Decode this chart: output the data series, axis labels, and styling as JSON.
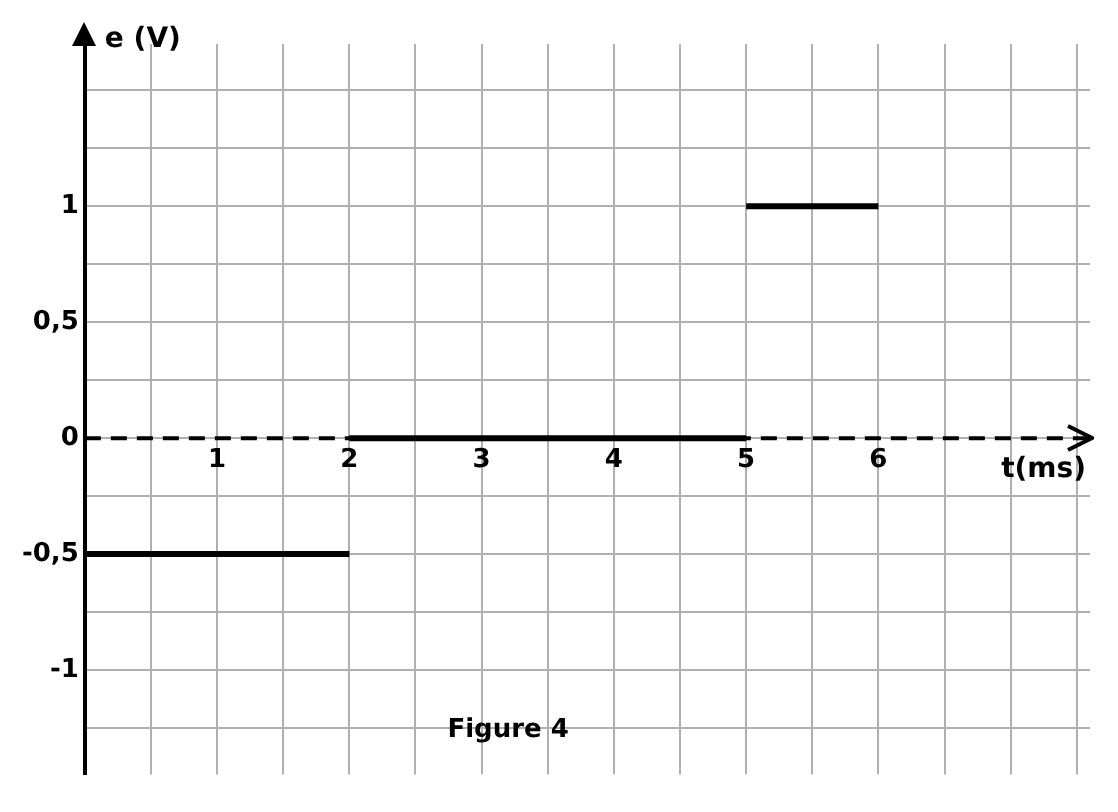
{
  "chart_data": {
    "type": "line",
    "xlabel": "t(ms)",
    "ylabel": "e (V)",
    "annotations": [
      "Figure 4"
    ],
    "xlim": [
      0,
      7.6
    ],
    "ylim": [
      -1.45,
      1.7
    ],
    "xticks": [
      {
        "value": 0,
        "label": null
      },
      {
        "value": 0.5,
        "label": null
      },
      1,
      {
        "value": 1.5,
        "label": null
      },
      2,
      {
        "value": 2.5,
        "label": null
      },
      3,
      {
        "value": 3.5,
        "label": null
      },
      4,
      {
        "value": 4.5,
        "label": null
      },
      5,
      {
        "value": 5.5,
        "label": null
      },
      6,
      {
        "value": 6.5,
        "label": null
      },
      {
        "value": 7,
        "label": null
      },
      {
        "value": 7.5,
        "label": null
      }
    ],
    "yticks": [
      {
        "value": -1.25,
        "label": null
      },
      {
        "value": -1,
        "label": "-1"
      },
      {
        "value": -0.75,
        "label": null
      },
      {
        "value": -0.5,
        "label": "-0,5"
      },
      {
        "value": -0.25,
        "label": null
      },
      0,
      {
        "value": 0.25,
        "label": null
      },
      {
        "value": 0.5,
        "label": "0,5"
      },
      {
        "value": 0.75,
        "label": null
      },
      {
        "value": 1,
        "label": "1"
      },
      {
        "value": 1.25,
        "label": null
      },
      {
        "value": 1.5,
        "label": null
      }
    ],
    "ref_lines": [
      {
        "axis": "y",
        "value": 0,
        "color": "#000000",
        "line_style": "dashed"
      }
    ],
    "grid": true,
    "legend": false,
    "marker": "none",
    "line_style": "solid",
    "series": [
      {
        "type": "line",
        "color": "#000000",
        "x": [
          0,
          2
        ],
        "values": [
          -0.5,
          -0.5
        ]
      },
      {
        "type": "line",
        "color": "#000000",
        "x": [
          2,
          5
        ],
        "values": [
          0,
          0
        ]
      },
      {
        "type": "line",
        "color": "#000000",
        "x": [
          5,
          6
        ],
        "values": [
          1,
          1
        ]
      }
    ]
  }
}
